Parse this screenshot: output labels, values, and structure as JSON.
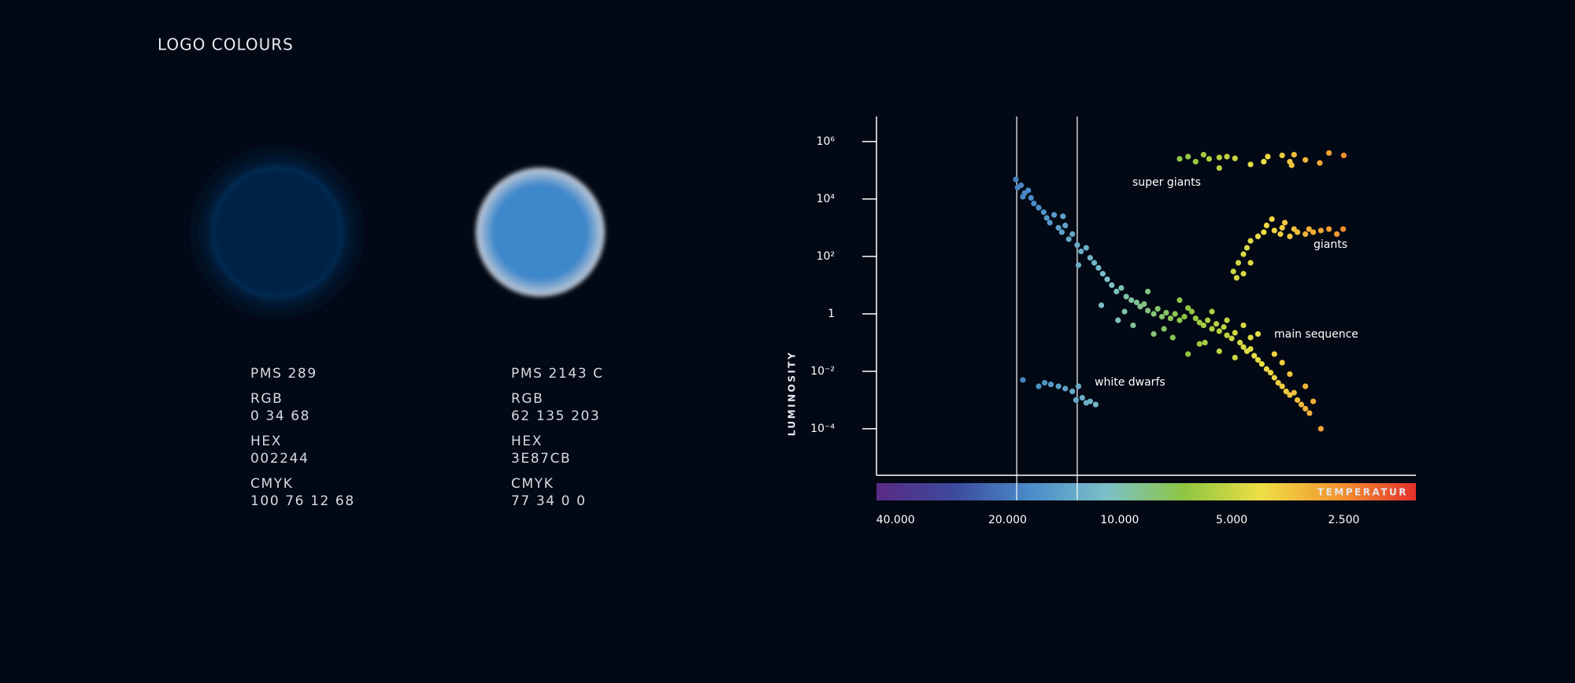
{
  "header": {
    "title": "LOGO COLOURS"
  },
  "swatches": [
    {
      "color": "#002244",
      "lines": [
        "PMS 289",
        "RGB",
        "0 34 68",
        "HEX",
        "002244",
        "CMYK",
        "100 76 12 68"
      ]
    },
    {
      "color": "#3E87CB",
      "lines": [
        "PMS 2143 C",
        "RGB",
        "62 135 203",
        "HEX",
        "3E87CB",
        "CMYK",
        "77 34 0 0"
      ]
    }
  ],
  "chart_data": {
    "type": "scatter",
    "xlabel": "TEMPERATUR",
    "ylabel": "LUMINOSITY",
    "xlog": true,
    "ylog": true,
    "xlim": [
      45000,
      1600
    ],
    "ylim": [
      2.4e-06,
      7500000.0
    ],
    "xticks": [
      {
        "value": 40000,
        "label": "40.000"
      },
      {
        "value": 20000,
        "label": "20.000"
      },
      {
        "value": 10000,
        "label": "10.000"
      },
      {
        "value": 5000,
        "label": "5.000"
      },
      {
        "value": 2500,
        "label": "2.500"
      }
    ],
    "yticks": [
      {
        "value": 1000000,
        "label": "10⁶"
      },
      {
        "value": 10000,
        "label": "10⁴"
      },
      {
        "value": 100,
        "label": "10²"
      },
      1,
      {
        "value": 0.01,
        "label": "10⁻²"
      },
      {
        "value": 0.0001,
        "label": "10⁻⁴"
      }
    ],
    "reference_lines": [
      18900,
      13000
    ],
    "colorscale": [
      "#5a2a85",
      "#3d4a9c",
      "#4a8cc9",
      "#7bc0c8",
      "#8ec641",
      "#eedf45",
      "#f39530",
      "#e5302c"
    ],
    "series": [
      {
        "name": "super giants",
        "x": [
          6900,
          6550,
          6250,
          5950,
          5750,
          5400,
          5150,
          4900,
          5400,
          4450,
          4100,
          4000,
          3660,
          3490,
          3400,
          3170,
          2900,
          2740,
          2500,
          3450
        ],
        "values": [
          250000.0,
          300000.0,
          200000.0,
          350000.0,
          250000.0,
          280000.0,
          300000.0,
          260000.0,
          120000.0,
          160000.0,
          200000.0,
          300000.0,
          330000.0,
          200000.0,
          350000.0,
          230000.0,
          180000.0,
          400000.0,
          330000.0,
          150000.0
        ]
      },
      {
        "name": "giants",
        "x": [
          4950,
          4800,
          4650,
          4550,
          4450,
          4250,
          4100,
          4030,
          3840,
          3700,
          3660,
          3490,
          3400,
          3330,
          3170,
          3100,
          3020,
          2880,
          2740,
          2610,
          2510,
          4650,
          4850,
          4450,
          3900,
          3600
        ],
        "values": [
          30,
          60,
          120,
          200,
          350,
          500,
          700,
          1200,
          800,
          600,
          1000,
          500,
          900,
          700,
          600,
          900,
          700,
          800,
          900,
          600,
          900,
          25,
          18,
          60,
          2000,
          1500
        ]
      },
      {
        "name": "main sequence",
        "x": [
          19000,
          18800,
          18400,
          18000,
          17600,
          17300,
          17000,
          16500,
          16000,
          15700,
          15400,
          15000,
          14600,
          14300,
          14000,
          13700,
          13400,
          13000,
          12700,
          12300,
          12000,
          11700,
          11400,
          11100,
          10800,
          10500,
          10200,
          9900,
          9600,
          9300,
          9000,
          8800,
          8600,
          8400,
          8100,
          7900,
          7700,
          7500,
          7300,
          7100,
          6900,
          6700,
          6550,
          6400,
          6250,
          6100,
          5950,
          5800,
          5650,
          5500,
          5400,
          5250,
          5150,
          5000,
          4900,
          4750,
          4650,
          4550,
          4450,
          4350,
          4250,
          4150,
          4030,
          3930,
          3840,
          3750,
          3660,
          3570,
          3490,
          3400,
          3330,
          3250,
          3170,
          3090,
          2880,
          18200,
          14200,
          12900,
          11200,
          9200,
          10100,
          8400,
          7200,
          6900,
          6550,
          5900,
          5650,
          5150,
          4650,
          4450,
          4250,
          3840,
          3660,
          4900,
          5400,
          6100,
          7600,
          8100,
          9700,
          3490,
          3170,
          3020
        ],
        "values": [
          48000.0,
          25000.0,
          30000.0,
          16000.0,
          20000.0,
          11000.0,
          7000,
          5000,
          3500,
          2200,
          1500,
          2800,
          1000,
          700,
          1200,
          400,
          600,
          250,
          150,
          200,
          90,
          60,
          40,
          25,
          16,
          10,
          6,
          8,
          4,
          3,
          2.5,
          1.8,
          2.2,
          1.3,
          1,
          1.5,
          0.8,
          1.1,
          0.7,
          1,
          0.6,
          0.8,
          1.6,
          1.2,
          0.7,
          0.5,
          0.4,
          0.6,
          0.3,
          0.45,
          0.25,
          0.35,
          0.18,
          0.14,
          0.22,
          0.1,
          0.07,
          0.05,
          0.06,
          0.035,
          0.025,
          0.018,
          0.012,
          0.009,
          0.006,
          0.004,
          0.003,
          0.002,
          0.0015,
          0.0018,
          0.001,
          0.0007,
          0.0005,
          0.00035,
          0.0001,
          12000.0,
          2500,
          50,
          2,
          0.4,
          0.6,
          6,
          0.15,
          3,
          0.04,
          0.1,
          1.2,
          0.6,
          0.4,
          0.15,
          0.2,
          0.04,
          0.02,
          0.03,
          0.05,
          0.09,
          0.3,
          0.2,
          1.2,
          0.008,
          0.003,
          0.0009
        ]
      },
      {
        "name": "white dwarfs",
        "x": [
          18200,
          16500,
          15900,
          15300,
          14600,
          14000,
          13400,
          12900,
          12600,
          12300,
          12000,
          11600,
          13100
        ],
        "values": [
          0.005,
          0.003,
          0.004,
          0.0035,
          0.003,
          0.0025,
          0.002,
          0.003,
          0.0012,
          0.0008,
          0.0009,
          0.0007,
          0.001
        ]
      }
    ]
  }
}
